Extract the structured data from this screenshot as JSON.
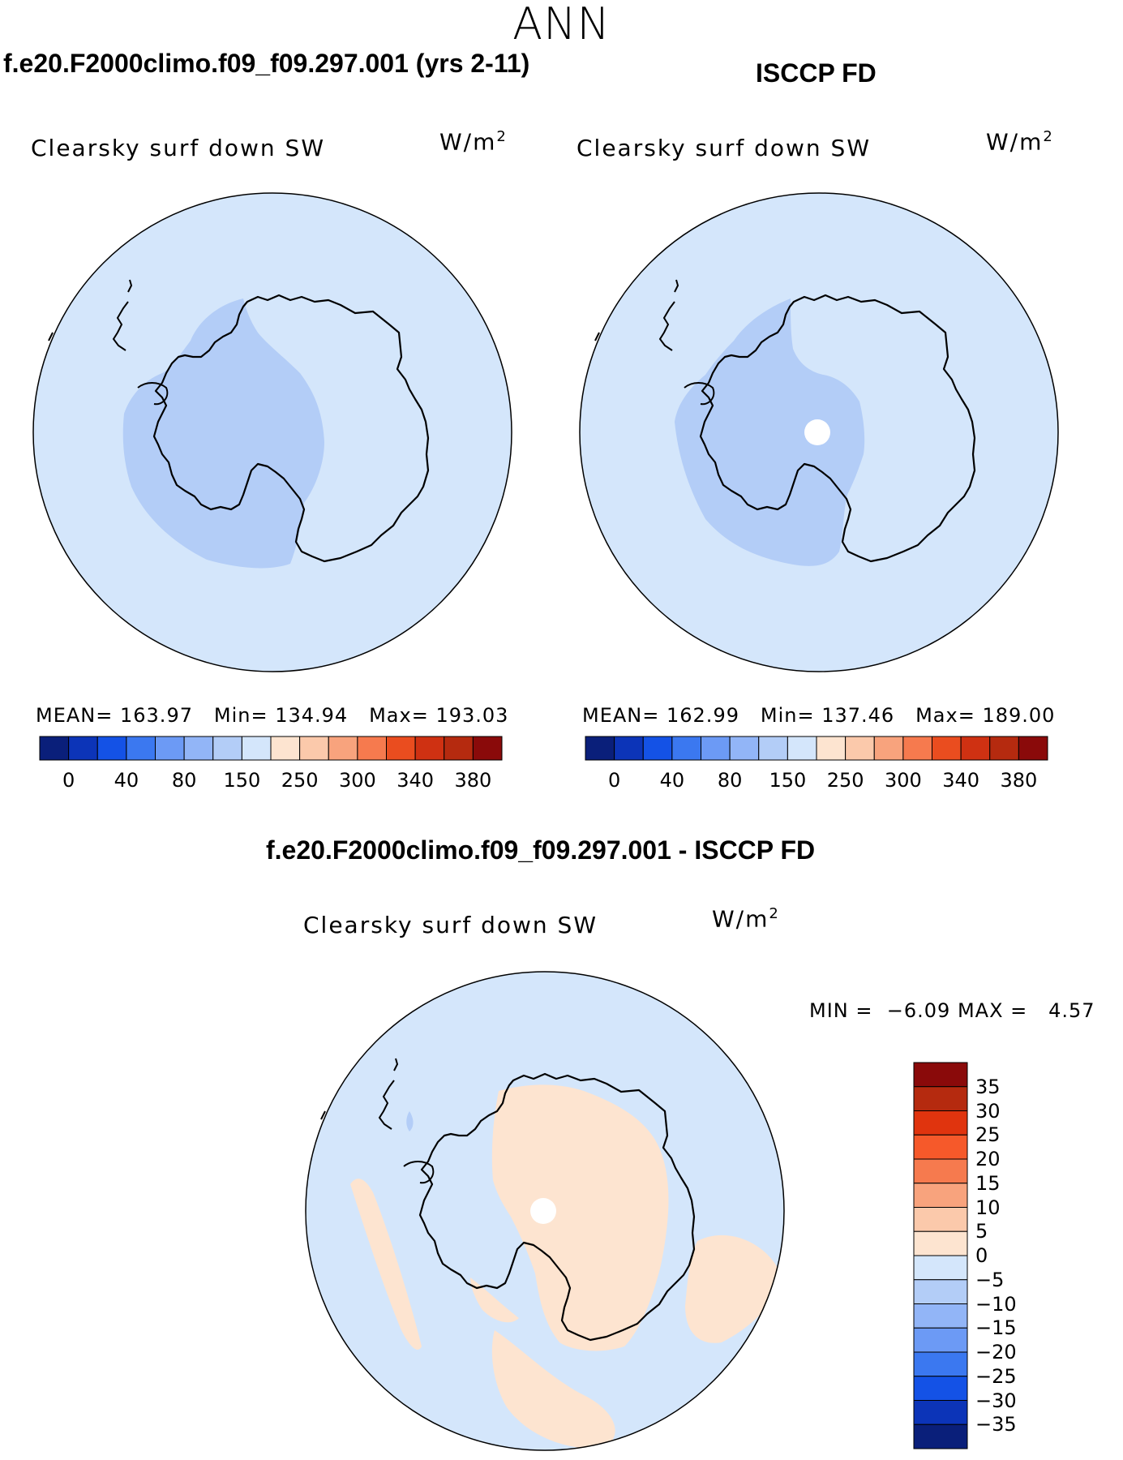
{
  "figure": {
    "title": "ANN",
    "colors": {
      "ocean": "#d4e6fb",
      "low_region": "#b3cdf7",
      "positive_region": "#fde4d0",
      "pole": "#ffffff"
    }
  },
  "panels": [
    {
      "id": "model",
      "title": "f.e20.F2000climo.f09_f09.297.001 (yrs 2-11)",
      "variable": "Clearsky surf down SW",
      "units_base": "W/m",
      "units_exp": "2",
      "stats": {
        "mean_label": "MEAN=",
        "mean": "163.97",
        "min_label": "Min=",
        "min": "134.94",
        "max_label": "Max=",
        "max": "193.03"
      }
    },
    {
      "id": "obs",
      "title": "ISCCP FD",
      "variable": "Clearsky surf down SW",
      "units_base": "W/m",
      "units_exp": "2",
      "stats": {
        "mean_label": "MEAN=",
        "mean": "162.99",
        "min_label": "Min=",
        "min": "137.46",
        "max_label": "Max=",
        "max": "189.00"
      }
    },
    {
      "id": "diff",
      "title": "f.e20.F2000climo.f09_f09.297.001 - ISCCP FD",
      "variable": "Clearsky surf down SW",
      "units_base": "W/m",
      "units_exp": "2",
      "stats": {
        "min_label": "MIN =",
        "min": "−6.09",
        "max_label": "MAX =",
        "max": "4.57"
      }
    }
  ],
  "colorbars": {
    "absolute": {
      "colors": [
        "#0a1f7a",
        "#0c34b8",
        "#1452e6",
        "#3b78f0",
        "#6c9af5",
        "#92b5f7",
        "#b3cdf7",
        "#d4e6fb",
        "#fde4d0",
        "#fbc9ab",
        "#f8a37d",
        "#f67a4e",
        "#ea4d1f",
        "#cf3112",
        "#b52a0f",
        "#8a0a0a"
      ],
      "tick_labels": [
        "0",
        "40",
        "80",
        "150",
        "250",
        "300",
        "340",
        "380"
      ]
    },
    "difference": {
      "colors_top_to_bottom": [
        "#8a0a0a",
        "#b52a0f",
        "#e0340e",
        "#f6592a",
        "#f67a4e",
        "#f8a37d",
        "#fbc9ab",
        "#fde4d0",
        "#d4e6fb",
        "#b3cdf7",
        "#92b5f7",
        "#6c9af5",
        "#3b78f0",
        "#1452e6",
        "#0c34b8",
        "#0a1f7a"
      ],
      "tick_labels": [
        "35",
        "30",
        "25",
        "20",
        "15",
        "10",
        "5",
        "0",
        "−5",
        "−10",
        "−15",
        "−20",
        "−25",
        "−30",
        "−35"
      ]
    }
  }
}
